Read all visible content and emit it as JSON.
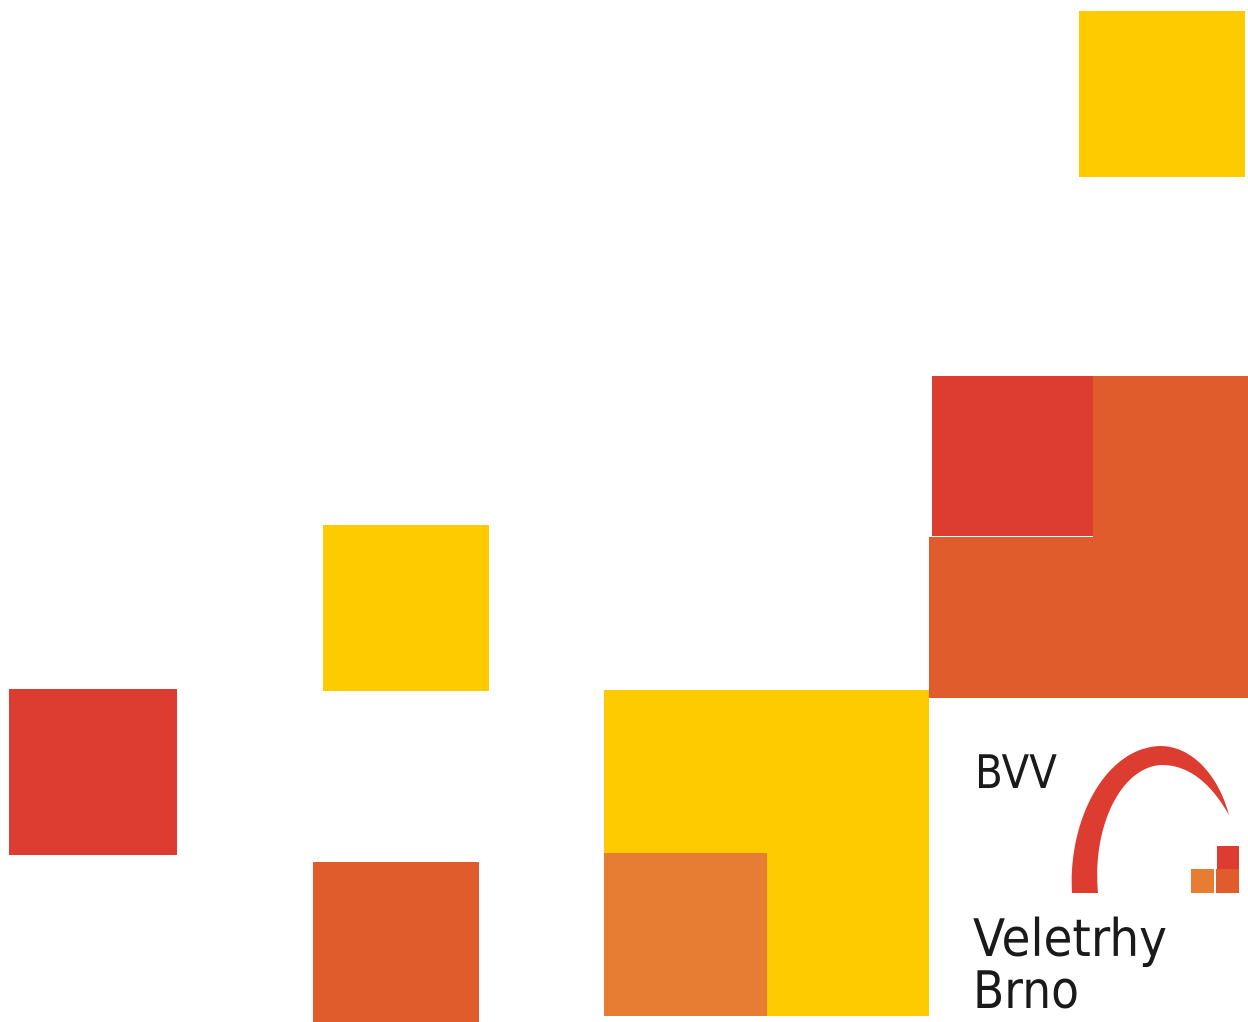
{
  "logo": {
    "abbreviation": "BVV",
    "name_line1": "Veletrhy",
    "name_line2": "Brno"
  }
}
